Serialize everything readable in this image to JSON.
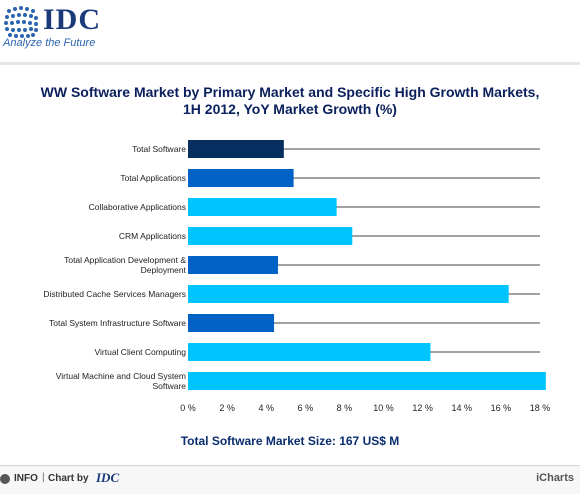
{
  "header": {
    "logo_text": "IDC",
    "tagline": "Analyze the Future"
  },
  "chart_data": {
    "type": "bar",
    "orientation": "horizontal",
    "title": "WW Software Market by Primary Market and Specific High Growth Markets,\n1H 2012, YoY Market Growth (%)",
    "categories": [
      "Total Software",
      "Total Applications",
      "Collaborative Applications",
      "CRM Applications",
      "Total Application Development & Deployment",
      "Distributed Cache Services Managers",
      "Total System Infrastructure Software",
      "Virtual Client Computing",
      "Virtual Machine and Cloud System Software"
    ],
    "values": [
      4.9,
      5.4,
      7.6,
      8.4,
      4.6,
      16.4,
      4.4,
      12.4,
      18.3
    ],
    "bar_colors": [
      "#062e5e",
      "#0062c4",
      "#00c4ff",
      "#00c4ff",
      "#0062c4",
      "#00c4ff",
      "#0062c4",
      "#00c4ff",
      "#00c4ff"
    ],
    "xlim": [
      0,
      18
    ],
    "x_ticks": [
      "0 %",
      "2 %",
      "4 %",
      "6 %",
      "8 %",
      "10 %",
      "12 %",
      "14 %",
      "16 %",
      "18 %"
    ],
    "grid": "horizontal lines per category",
    "footnote": "Total Software Market Size: 167 US$ M"
  },
  "footer": {
    "info_label": "INFO",
    "separator": "|",
    "chart_by_label": "Chart by",
    "chart_by_logo": "IDC",
    "brand": "iCharts"
  },
  "colors": {
    "title": "#0a1f5c",
    "dark_navy": "#062e5e",
    "medium_blue": "#0062c4",
    "cyan": "#00c4ff"
  }
}
